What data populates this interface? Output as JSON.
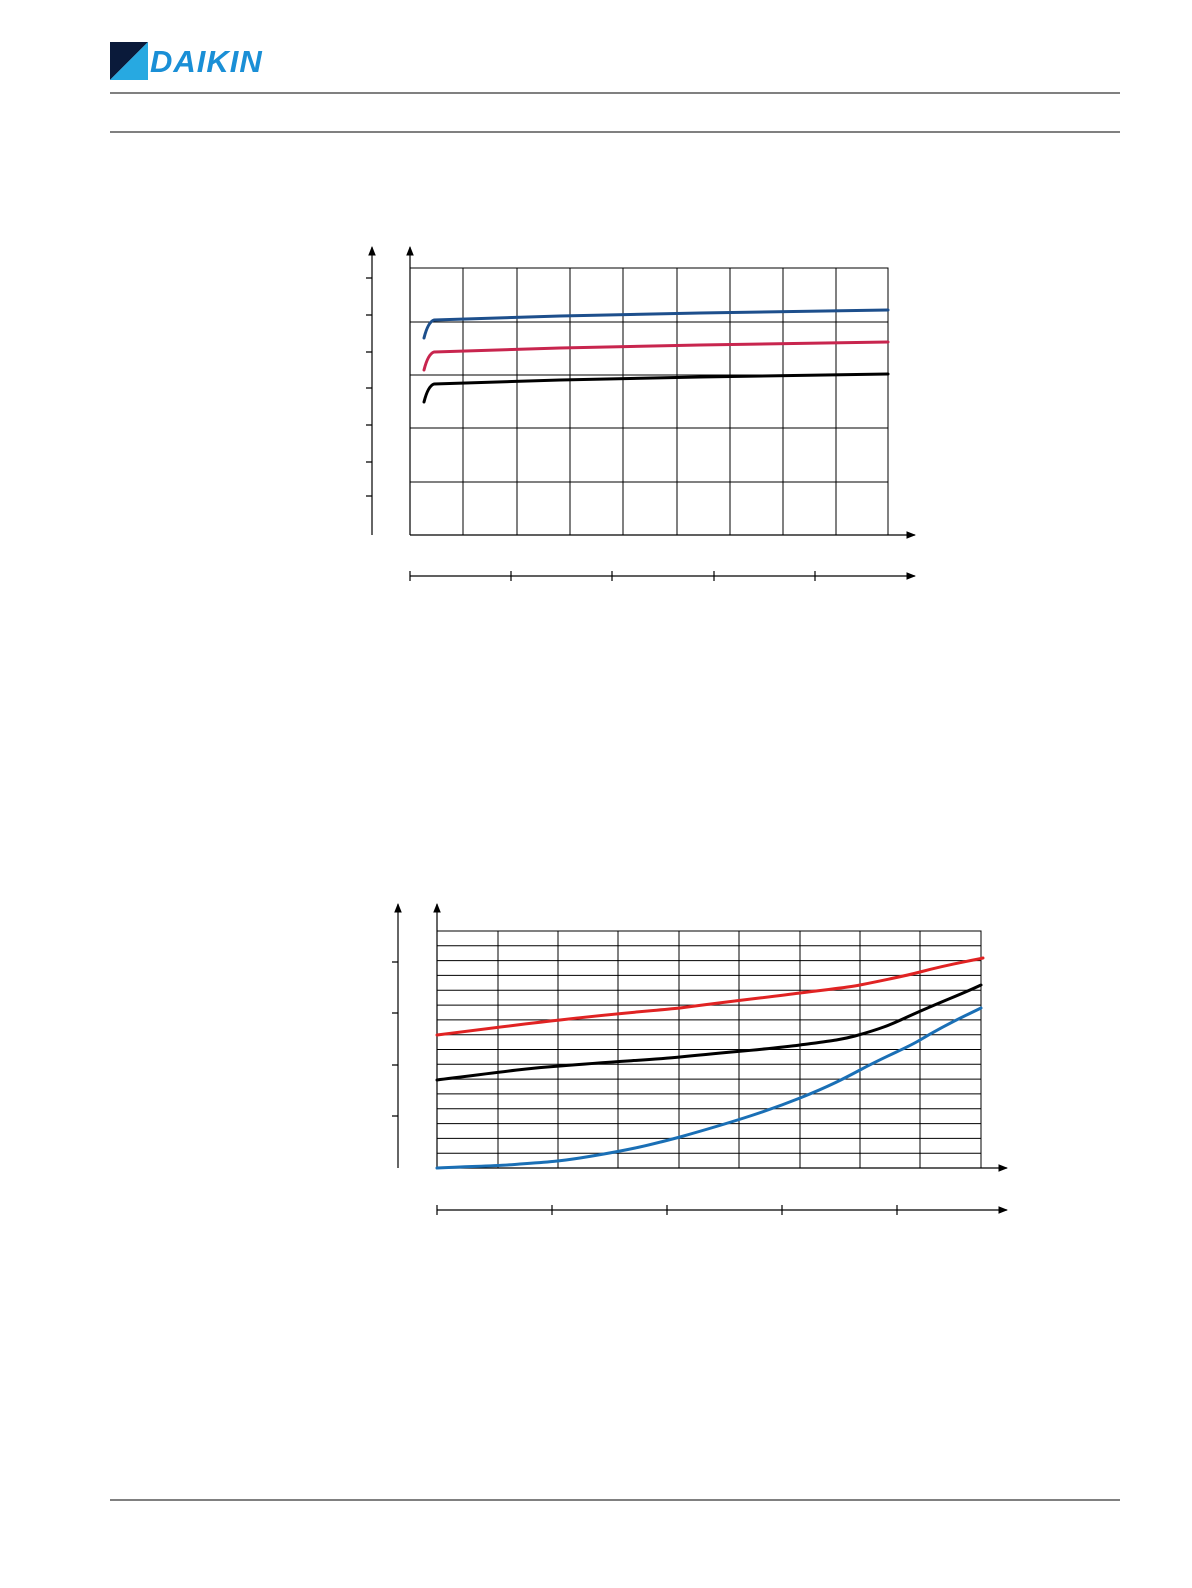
{
  "header": {
    "logo": "DAIKIN"
  }
}
